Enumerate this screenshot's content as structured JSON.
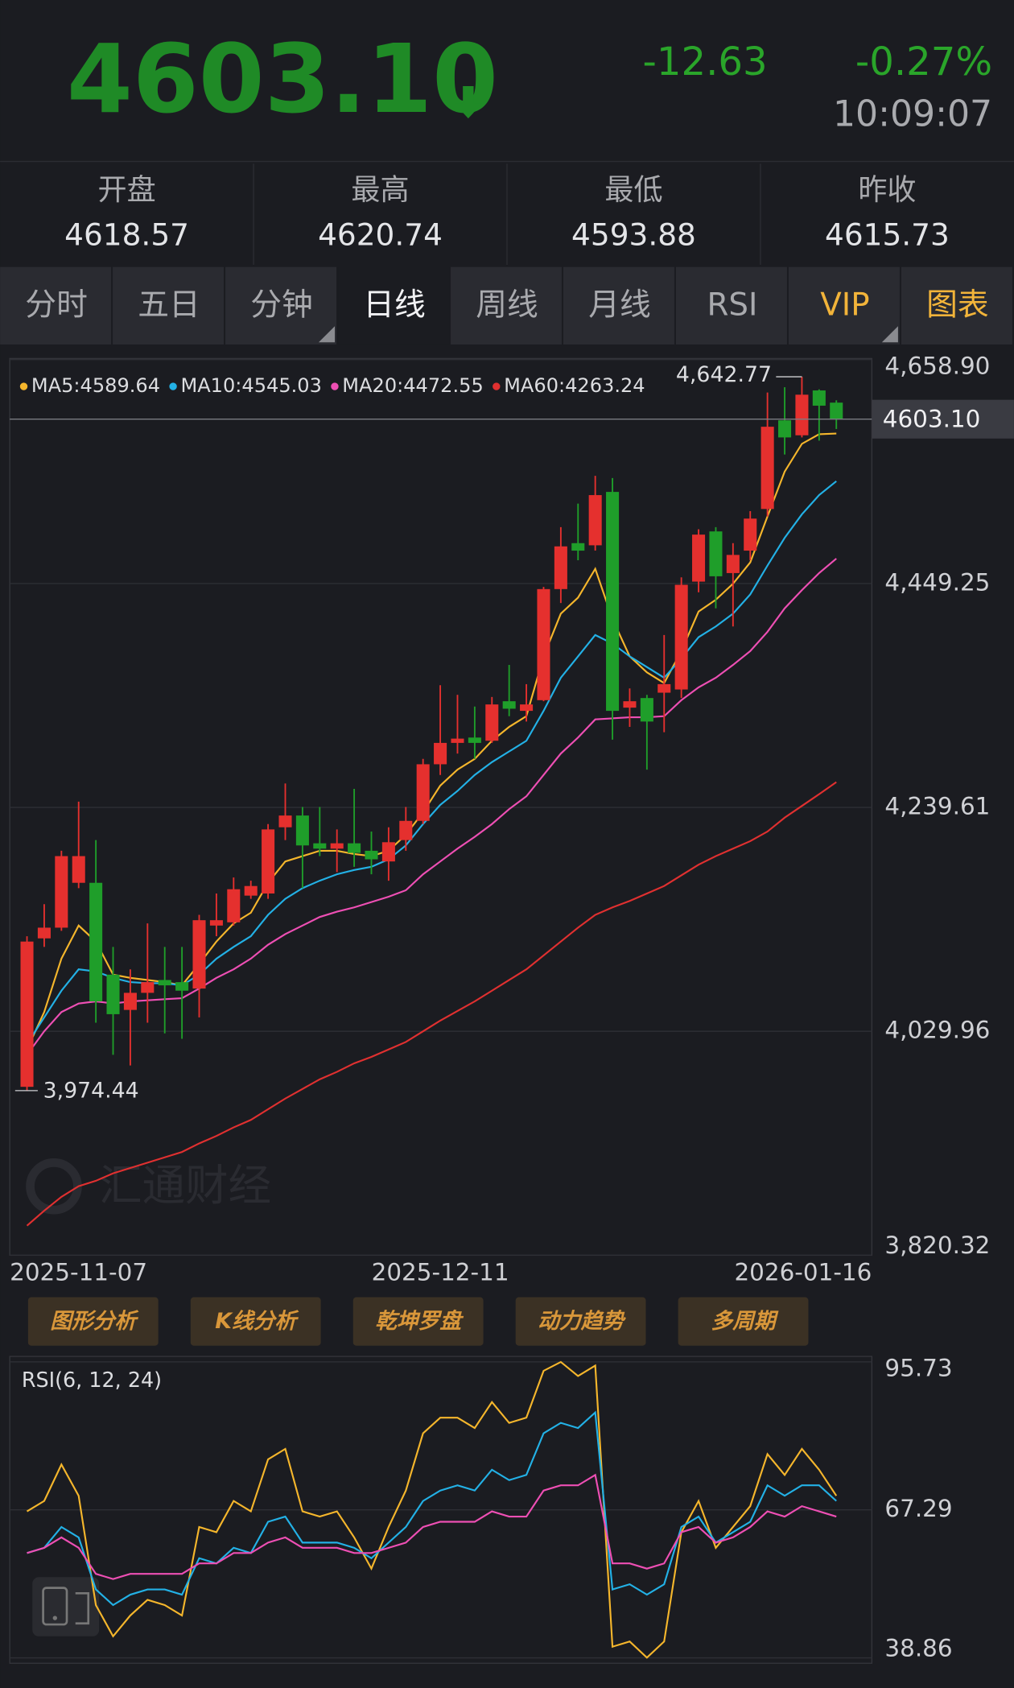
{
  "quote": {
    "price": "4603.10",
    "change": "-12.63",
    "change_percent": "-0.27%",
    "time": "10:09:07"
  },
  "stats": [
    {
      "label": "开盘",
      "value": "4618.57"
    },
    {
      "label": "最高",
      "value": "4620.74"
    },
    {
      "label": "最低",
      "value": "4593.88"
    },
    {
      "label": "昨收",
      "value": "4615.73"
    }
  ],
  "tabs": [
    "分时",
    "五日",
    "分钟",
    "日线",
    "周线",
    "月线",
    "RSI",
    "VIP",
    "图表"
  ],
  "active_tab": 3,
  "tools": [
    "图形分析",
    "K线分析",
    "乾坤罗盘",
    "动力趋势",
    "多周期"
  ],
  "watermark": "汇通财经",
  "chart_data": [
    {
      "type": "candlestick",
      "categories": [
        "2025-11-07",
        null,
        null,
        null,
        null,
        null,
        null,
        null,
        null,
        null,
        null,
        null,
        null,
        null,
        null,
        null,
        null,
        null,
        null,
        null,
        null,
        null,
        null,
        null,
        "2025-12-11",
        null,
        null,
        null,
        null,
        null,
        null,
        null,
        null,
        null,
        null,
        null,
        null,
        null,
        null,
        null,
        null,
        null,
        null,
        null,
        null,
        null,
        null,
        "2026-01-16"
      ],
      "open": [
        3978,
        4117,
        4127,
        4169,
        4169,
        4083,
        4050,
        4066,
        4078,
        4076,
        4070,
        4129,
        4132,
        4157,
        4159,
        4221,
        4232,
        4206,
        4201,
        4206,
        4199,
        4189,
        4209,
        4227,
        4280,
        4300,
        4305,
        4302,
        4339,
        4330,
        4340,
        4444,
        4487,
        4485,
        4535,
        4333,
        4342,
        4347,
        4350,
        4451,
        4498,
        4459,
        4480,
        4519,
        4602,
        4588,
        4630,
        4618.57
      ],
      "high": [
        4119,
        4149,
        4199,
        4245,
        4209,
        4109,
        4088,
        4131,
        4109,
        4109,
        4139,
        4159,
        4174,
        4171,
        4224,
        4262,
        4240,
        4240,
        4219,
        4257,
        4217,
        4221,
        4240,
        4285,
        4354,
        4345,
        4334,
        4343,
        4373,
        4355,
        4446,
        4502,
        4524,
        4550,
        4548,
        4351,
        4345,
        4401,
        4455,
        4500,
        4502,
        4487,
        4517,
        4628,
        4633,
        4642.77,
        4631,
        4620.74
      ],
      "low": [
        3974.44,
        4109,
        4124,
        4164,
        4038,
        4008,
        3998,
        4038,
        4028,
        4023,
        4043,
        4119,
        4129,
        4154,
        4154,
        4209,
        4164,
        4194,
        4179,
        4184,
        4177,
        4171,
        4199,
        4224,
        4270,
        4290,
        4285,
        4300,
        4325,
        4320,
        4339,
        4431,
        4471,
        4480,
        4303,
        4315,
        4275,
        4310,
        4342,
        4441,
        4426,
        4409,
        4471,
        4512,
        4570,
        4586,
        4583,
        4593.88
      ],
      "close": [
        4114,
        4127,
        4194,
        4194,
        4058,
        4046,
        4066,
        4076,
        4073,
        4068,
        4134,
        4134,
        4163,
        4166,
        4219,
        4232,
        4204,
        4201,
        4206,
        4197,
        4191,
        4207,
        4227,
        4280,
        4300,
        4304,
        4300,
        4336,
        4332,
        4336,
        4444,
        4484,
        4480,
        4532,
        4330,
        4339,
        4320,
        4355,
        4448,
        4495,
        4456,
        4476,
        4510,
        4596,
        4586,
        4626,
        4615.73,
        4603.1
      ],
      "up_color": "#e5302e",
      "down_color": "#1f9e2a",
      "series": [
        {
          "name": "MA5:4589.64",
          "color": "#f5b62c",
          "values": [
            4013,
            4048,
            4098,
            4129,
            4114,
            4083,
            4080,
            4078,
            4076,
            4073,
            4093,
            4114,
            4131,
            4141,
            4169,
            4189,
            4194,
            4199,
            4199,
            4196,
            4194,
            4199,
            4214,
            4235,
            4260,
            4275,
            4285,
            4302,
            4315,
            4325,
            4381,
            4421,
            4436,
            4463,
            4416,
            4381,
            4366,
            4356,
            4386,
            4423,
            4434,
            4449,
            4469,
            4512,
            4554,
            4580,
            4589,
            4589.64
          ]
        },
        {
          "name": "MA10:4545.03",
          "color": "#23b1e6",
          "values": [
            4018,
            4043,
            4068,
            4088,
            4086,
            4080,
            4076,
            4075,
            4075,
            4073,
            4083,
            4098,
            4109,
            4119,
            4139,
            4154,
            4164,
            4171,
            4177,
            4181,
            4184,
            4191,
            4204,
            4224,
            4242,
            4255,
            4270,
            4282,
            4292,
            4302,
            4330,
            4361,
            4381,
            4401,
            4393,
            4381,
            4371,
            4361,
            4379,
            4399,
            4409,
            4421,
            4439,
            4466,
            4492,
            4514,
            4532,
            4545.03
          ]
        },
        {
          "name": "MA20:4472.55",
          "color": "#ee4fb4",
          "values": [
            4008,
            4030,
            4048,
            4056,
            4058,
            4056,
            4058,
            4059,
            4060,
            4061,
            4070,
            4080,
            4088,
            4098,
            4111,
            4121,
            4129,
            4137,
            4142,
            4146,
            4151,
            4156,
            4162,
            4177,
            4189,
            4201,
            4212,
            4224,
            4238,
            4250,
            4270,
            4290,
            4305,
            4322,
            4323,
            4324,
            4324,
            4325,
            4340,
            4352,
            4361,
            4373,
            4386,
            4404,
            4426,
            4443,
            4459,
            4472.55
          ]
        },
        {
          "name": "MA60:4263.24",
          "color": "#e03030",
          "values": [
            3848,
            3862,
            3875,
            3885,
            3890,
            3897,
            3902,
            3907,
            3912,
            3917,
            3925,
            3932,
            3940,
            3947,
            3957,
            3967,
            3976,
            3985,
            3992,
            4000,
            4006,
            4013,
            4020,
            4030,
            4040,
            4049,
            4058,
            4068,
            4078,
            4088,
            4101,
            4114,
            4127,
            4139,
            4146,
            4152,
            4159,
            4166,
            4176,
            4186,
            4194,
            4201,
            4208,
            4217,
            4230,
            4241,
            4252,
            4263.24
          ]
        }
      ],
      "ylim": [
        3820.32,
        4658.9
      ],
      "yticks": [
        {
          "value": 4658.9,
          "label": "4,658.90"
        },
        {
          "value": 4449.25,
          "label": "4,449.25"
        },
        {
          "value": 4239.61,
          "label": "4,239.61"
        },
        {
          "value": 4029.96,
          "label": "4,029.96"
        },
        {
          "value": 3820.32,
          "label": "3,820.32"
        }
      ],
      "grid": true,
      "high_annotation": {
        "value": 4642.77,
        "label": "4,642.77"
      },
      "low_annotation": {
        "value": 3974.44,
        "label": "3,974.44"
      },
      "last_price": {
        "value": 4603.1,
        "label": "4603.10"
      }
    },
    {
      "type": "line",
      "title": "RSI(6, 12, 24)",
      "series": [
        {
          "color": "#f5b62c",
          "values": [
            67,
            69,
            76,
            70,
            49,
            43,
            47,
            50,
            49,
            47,
            64,
            63,
            69,
            67,
            77,
            79,
            67,
            66,
            67,
            62,
            56,
            64,
            71,
            82,
            85,
            85,
            83,
            88,
            84,
            85,
            94,
            95.7,
            93,
            95,
            41,
            42,
            38.9,
            42,
            63,
            69,
            60,
            64,
            68,
            78,
            74,
            79,
            75,
            70
          ]
        },
        {
          "color": "#23b1e6",
          "values": [
            59,
            60,
            64,
            62,
            52,
            49,
            51,
            52,
            52,
            51,
            58,
            57,
            60,
            59,
            65,
            66,
            61,
            61,
            61,
            60,
            58,
            61,
            64,
            69,
            71,
            72,
            71,
            75,
            73,
            74,
            82,
            84,
            83,
            86,
            52,
            53,
            51,
            53,
            64,
            66,
            61,
            63,
            65,
            72,
            70,
            72,
            72,
            69
          ]
        },
        {
          "color": "#ee4fb4",
          "values": [
            59,
            60,
            62,
            60,
            55,
            54,
            55,
            55,
            55,
            55,
            57,
            57,
            59,
            59,
            61,
            62,
            60,
            60,
            60,
            59,
            59,
            60,
            61,
            64,
            65,
            65,
            65,
            67,
            66,
            66,
            71,
            72,
            72,
            74,
            57,
            57,
            56,
            57,
            63,
            64,
            61,
            62,
            64,
            67,
            66,
            68,
            67,
            66
          ]
        }
      ],
      "ylim": [
        38.86,
        95.73
      ],
      "yticks": [
        95.73,
        67.29,
        38.86
      ],
      "grid": true
    }
  ]
}
